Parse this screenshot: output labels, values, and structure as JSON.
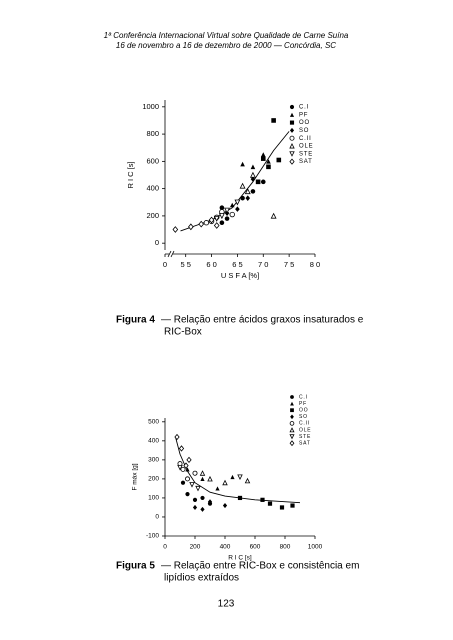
{
  "header": {
    "line1": "1ª Conferência Internacional Virtual sobre Qualidade de Carne Suína",
    "line2": "16 de novembro a 16 de dezembro de 2000 — Concórdia, SC"
  },
  "chart_data": [
    {
      "type": "scatter",
      "caption_label": "Figura 4",
      "caption_lines": [
        "— Relação entre ácidos graxos insaturados e",
        "RIC-Box"
      ],
      "x_label": "U S F A [%]",
      "y_label": "R I C [s]",
      "x_origin_label": "0",
      "xlim": [
        51,
        80
      ],
      "ylim": [
        -50,
        1050
      ],
      "xticks": [
        {
          "value": 55,
          "label": "5 5"
        },
        {
          "value": 60,
          "label": "6 0"
        },
        {
          "value": 65,
          "label": "6 5"
        },
        {
          "value": 70,
          "label": "7 0"
        },
        {
          "value": 75,
          "label": "7 5"
        },
        {
          "value": 80,
          "label": "8 0"
        }
      ],
      "yticks": [
        0,
        200,
        400,
        600,
        800,
        1000
      ],
      "legend": "upper right",
      "series": [
        {
          "name": "C.I",
          "marker": "circle",
          "color": "#000",
          "x": [
            62,
            63,
            66,
            68,
            70,
            62
          ],
          "y": [
            150,
            180,
            330,
            380,
            450,
            260
          ]
        },
        {
          "name": "PF",
          "marker": "triangle",
          "color": "#000",
          "x": [
            66,
            68,
            70,
            71,
            64
          ],
          "y": [
            580,
            560,
            650,
            600,
            280
          ]
        },
        {
          "name": "OO",
          "marker": "square",
          "color": "#000",
          "x": [
            72,
            70,
            71,
            69,
            73
          ],
          "y": [
            900,
            620,
            560,
            450,
            610
          ]
        },
        {
          "name": "SO",
          "marker": "diamond",
          "color": "#000",
          "x": [
            67,
            65,
            68,
            63
          ],
          "y": [
            330,
            250,
            470,
            220
          ]
        },
        {
          "name": "C.II",
          "marker": "circle-open",
          "color": "#000",
          "x": [
            60,
            61,
            62,
            64,
            59
          ],
          "y": [
            160,
            190,
            230,
            210,
            150
          ]
        },
        {
          "name": "OLE",
          "marker": "triangle-open",
          "color": "#000",
          "x": [
            68,
            66,
            72,
            67
          ],
          "y": [
            500,
            420,
            200,
            380
          ]
        },
        {
          "name": "STE",
          "marker": "triangle-down-open",
          "color": "#000",
          "x": [
            62,
            63,
            65,
            61
          ],
          "y": [
            200,
            240,
            300,
            180
          ]
        },
        {
          "name": "SAT",
          "marker": "diamond-open",
          "color": "#000",
          "x": [
            53,
            56,
            58,
            60,
            61
          ],
          "y": [
            100,
            120,
            140,
            170,
            130
          ]
        }
      ],
      "curve": {
        "x": [
          54,
          60,
          64,
          68,
          72,
          75
        ],
        "y": [
          90,
          170,
          260,
          450,
          680,
          820
        ]
      }
    },
    {
      "type": "scatter",
      "caption_label": "Figura 5",
      "caption_lines": [
        "— Relação entre RIC-Box e consistência em",
        "lipídios extraídos"
      ],
      "x_label": "R I C [s]",
      "y_label": "F máx [g]",
      "xlim": [
        0,
        1000
      ],
      "ylim": [
        -100,
        520
      ],
      "xticks": [
        0,
        200,
        400,
        600,
        800,
        1000
      ],
      "yticks": [
        -100,
        0,
        100,
        200,
        300,
        400,
        500
      ],
      "legend": "upper right",
      "series": [
        {
          "name": "C.I",
          "marker": "circle",
          "color": "#000",
          "x": [
            150,
            200,
            250,
            300,
            120
          ],
          "y": [
            120,
            90,
            100,
            70,
            180
          ]
        },
        {
          "name": "PF",
          "marker": "triangle",
          "color": "#000",
          "x": [
            350,
            250,
            450,
            150
          ],
          "y": [
            150,
            200,
            210,
            250
          ]
        },
        {
          "name": "OO",
          "marker": "square",
          "color": "#000",
          "x": [
            700,
            780,
            850,
            650,
            500
          ],
          "y": [
            70,
            50,
            60,
            90,
            100
          ]
        },
        {
          "name": "SO",
          "marker": "diamond",
          "color": "#000",
          "x": [
            200,
            300,
            400,
            250
          ],
          "y": [
            50,
            80,
            60,
            40
          ]
        },
        {
          "name": "C.II",
          "marker": "circle-open",
          "color": "#000",
          "x": [
            100,
            150,
            200,
            120
          ],
          "y": [
            280,
            200,
            230,
            250
          ]
        },
        {
          "name": "OLE",
          "marker": "triangle-open",
          "color": "#000",
          "x": [
            300,
            400,
            550,
            250
          ],
          "y": [
            200,
            180,
            190,
            230
          ]
        },
        {
          "name": "STE",
          "marker": "triangle-down-open",
          "color": "#000",
          "x": [
            180,
            220,
            100,
            500
          ],
          "y": [
            170,
            150,
            260,
            210
          ]
        },
        {
          "name": "SAT",
          "marker": "diamond-open",
          "color": "#000",
          "x": [
            80,
            110,
            140,
            160
          ],
          "y": [
            420,
            360,
            270,
            300
          ]
        }
      ],
      "curve": {
        "x": [
          70,
          100,
          150,
          200,
          300,
          400,
          600,
          900
        ],
        "y": [
          420,
          330,
          240,
          180,
          130,
          110,
          90,
          75
        ]
      }
    }
  ],
  "page_number": "123"
}
